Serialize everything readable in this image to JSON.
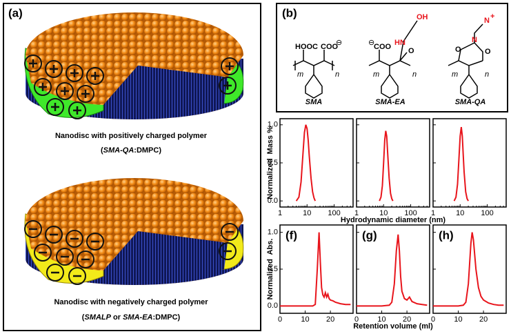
{
  "panel_a": {
    "label": "(a)",
    "top_caption": "Nanodisc with positively charged polymer",
    "top_subcaption": [
      "(",
      "SMA-QA",
      ":DMPC)"
    ],
    "bottom_caption": "Nanodisc with negatively charged polymer",
    "bottom_subcaption": [
      "(",
      "SMALP",
      " or ",
      "SMA-EA",
      ":DMPC)"
    ]
  },
  "panel_b": {
    "label": "(b)",
    "names": [
      "SMA",
      "SMA-EA",
      "SMA-QA"
    ],
    "atoms": {
      "hooc": "HOOC",
      "coo": "COO",
      "minus": "⊖",
      "oh": "OH",
      "hn": "HN",
      "o": "O",
      "n": "N",
      "plus": "+",
      "m": "m",
      "n_sub": "n"
    }
  },
  "dls_axes": {
    "xlabel": "Hydrodynamic diameter (nm)",
    "ylabel": "Normalized  Mass %"
  },
  "sec_axes": {
    "xlabel": "Retention volume (ml)",
    "ylabel": "Normalized  Abs."
  },
  "chart_data": [
    {
      "type": "line",
      "log_x": true,
      "color": "#e8141b",
      "xlim": [
        1,
        500
      ],
      "ylim": [
        -0.08,
        1.08
      ],
      "xticks": [
        1,
        10,
        100
      ],
      "yticks": [
        {
          "value": 0,
          "label": "0.0"
        },
        {
          "value": 0.5,
          "label": "0.5"
        },
        {
          "value": 1,
          "label": "1.0"
        }
      ],
      "x": [
        4,
        5,
        6,
        7,
        8,
        9,
        10,
        11,
        12,
        14,
        16,
        18,
        20
      ],
      "values": [
        0,
        0.05,
        0.25,
        0.6,
        0.9,
        1.0,
        0.95,
        0.8,
        0.6,
        0.3,
        0.12,
        0.04,
        0
      ]
    },
    {
      "type": "line",
      "log_x": true,
      "color": "#e8141b",
      "xlim": [
        1,
        500
      ],
      "ylim": [
        -0.08,
        1.08
      ],
      "xticks": [
        1,
        10,
        100
      ],
      "x": [
        7,
        8,
        9,
        10,
        11,
        12,
        13,
        14,
        16,
        18,
        20,
        22
      ],
      "values": [
        0,
        0.05,
        0.2,
        0.5,
        0.8,
        0.92,
        0.85,
        0.65,
        0.3,
        0.1,
        0.03,
        0
      ]
    },
    {
      "type": "line",
      "log_x": true,
      "color": "#e8141b",
      "xlim": [
        1,
        500
      ],
      "ylim": [
        -0.08,
        1.08
      ],
      "xticks": [
        1,
        10,
        100
      ],
      "x": [
        6,
        7,
        8,
        9,
        10,
        11,
        12,
        13,
        14,
        16,
        18,
        20
      ],
      "values": [
        0,
        0.05,
        0.22,
        0.55,
        0.85,
        0.97,
        0.85,
        0.6,
        0.38,
        0.12,
        0.03,
        0
      ]
    },
    {
      "type": "line",
      "label": "(f)",
      "color": "#e8141b",
      "xlim": [
        0,
        29
      ],
      "ylim": [
        -0.1,
        1.1
      ],
      "xticks": [
        0,
        10,
        20
      ],
      "yticks": [
        {
          "value": 0,
          "label": "0.0"
        },
        {
          "value": 0.5,
          "label": "0.5"
        },
        {
          "value": 1,
          "label": "1.0"
        }
      ],
      "x": [
        0,
        5,
        10,
        13,
        14,
        14.8,
        15.5,
        16,
        16.5,
        17,
        17.5,
        18,
        18.5,
        19,
        19.5,
        20,
        21,
        22,
        24,
        26,
        28
      ],
      "values": [
        0,
        0,
        0,
        0,
        0.02,
        0.5,
        1.0,
        0.6,
        0.25,
        0.15,
        0.12,
        0.18,
        0.12,
        0.16,
        0.1,
        0.08,
        0.07,
        0.05,
        0.03,
        0.02,
        0.02
      ]
    },
    {
      "type": "line",
      "label": "(g)",
      "color": "#e8141b",
      "xlim": [
        0,
        29
      ],
      "ylim": [
        -0.1,
        1.1
      ],
      "xticks": [
        0,
        10,
        20
      ],
      "x": [
        0,
        5,
        10,
        13,
        14,
        15,
        15.8,
        16.5,
        17,
        17.5,
        18,
        19,
        20,
        21,
        22,
        24,
        26,
        28
      ],
      "values": [
        0,
        0,
        0,
        0.01,
        0.05,
        0.3,
        0.75,
        0.97,
        0.75,
        0.4,
        0.2,
        0.1,
        0.08,
        0.12,
        0.06,
        0.03,
        0.02,
        0.01
      ]
    },
    {
      "type": "line",
      "label": "(h)",
      "color": "#e8141b",
      "xlim": [
        0,
        29
      ],
      "ylim": [
        -0.1,
        1.1
      ],
      "xticks": [
        0,
        10,
        20
      ],
      "x": [
        0,
        5,
        10,
        12,
        13,
        14,
        15,
        15.5,
        16,
        17,
        18,
        19,
        20,
        22,
        24,
        26,
        28
      ],
      "values": [
        0,
        0,
        0,
        0.01,
        0.05,
        0.3,
        0.85,
        1.0,
        0.9,
        0.5,
        0.25,
        0.13,
        0.08,
        0.04,
        0.02,
        0.01,
        0.01
      ]
    }
  ]
}
